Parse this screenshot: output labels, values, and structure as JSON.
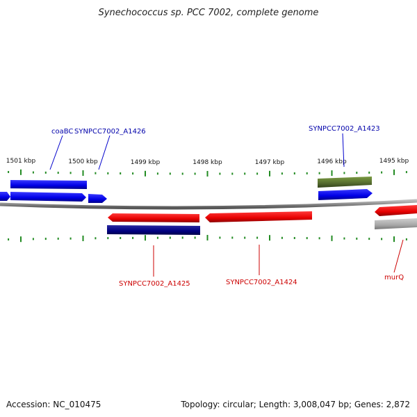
{
  "header": {
    "title": "Synechococcus sp. PCC 7002, complete genome"
  },
  "footer": {
    "accession": "Accession: NC_010475",
    "summary": "Topology: circular; Length: 3,008,047 bp; Genes: 2,872"
  },
  "scale": {
    "ticks": [
      {
        "kbp": 1501,
        "label": "1501 kbp"
      },
      {
        "kbp": 1500,
        "label": "1500 kbp"
      },
      {
        "kbp": 1499,
        "label": "1499 kbp"
      },
      {
        "kbp": 1498,
        "label": "1498 kbp"
      },
      {
        "kbp": 1497,
        "label": "1497 kbp"
      },
      {
        "kbp": 1496,
        "label": "1496 kbp"
      },
      {
        "kbp": 1495,
        "label": "1495 kbp"
      }
    ]
  },
  "colors": {
    "forward_cds": "#0000ee",
    "reverse_cds": "#ee0000",
    "forward_gene": "#1010cc",
    "reverse_gene": "#000080",
    "rna": "#556b2f",
    "other": "#aaaaaa",
    "backbone": "#888888",
    "ticks": "#228b22",
    "forward_label": "#0000aa",
    "reverse_label": "#cc0000"
  },
  "labels": {
    "forward": [
      "coaBC",
      "SYNPCC7002_A1426",
      "SYNPCC7002_A1423"
    ],
    "reverse": [
      "SYNPCC7002_A1425",
      "SYNPCC7002_A1424",
      "murQ"
    ]
  }
}
